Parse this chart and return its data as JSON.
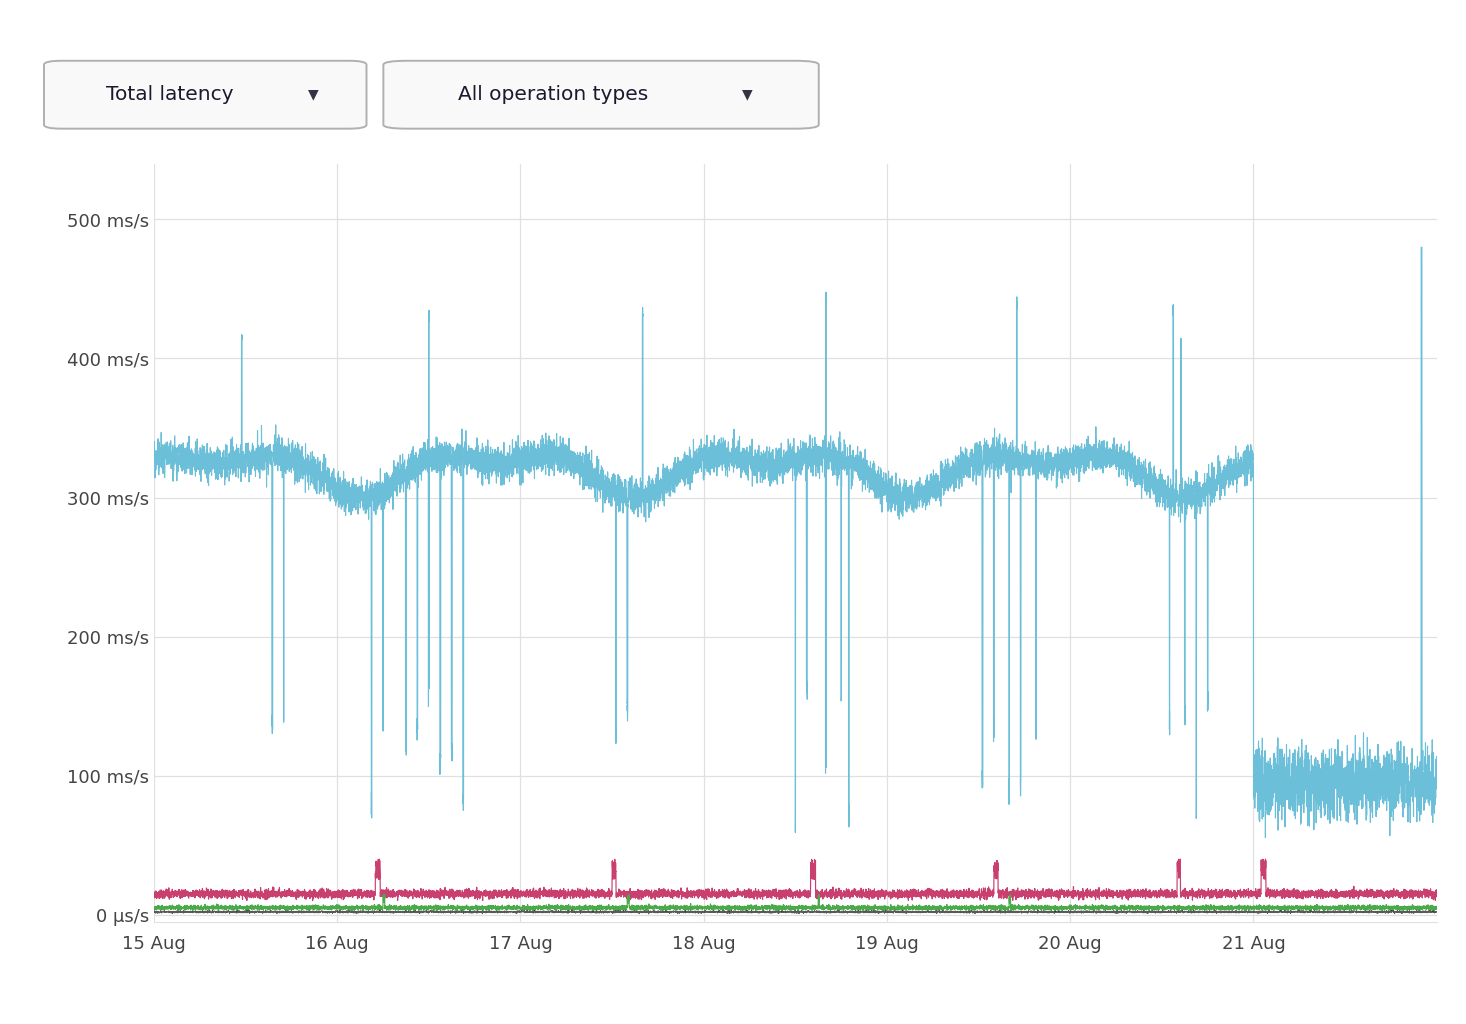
{
  "bg_color": "#ffffff",
  "plot_bg_color": "#ffffff",
  "grid_color": "#e0e0e0",
  "yticks": [
    0,
    100,
    200,
    300,
    400,
    500
  ],
  "ytick_labels": [
    "0 μs/s",
    "100 ms/s",
    "200 ms/s",
    "300 ms/s",
    "400 ms/s",
    "500 ms/s"
  ],
  "xtick_labels": [
    "15 Aug",
    "16 Aug",
    "17 Aug",
    "18 Aug",
    "19 Aug",
    "20 Aug",
    "21 Aug"
  ],
  "ylim": [
    -5,
    540
  ],
  "main_line_color": "#6bbfd9",
  "red_line_color": "#c94070",
  "green_line_color": "#4aaa4a",
  "dark_line_color": "#222222",
  "dropdown1": "Total latency",
  "dropdown2": "All operation types",
  "seed": 99
}
